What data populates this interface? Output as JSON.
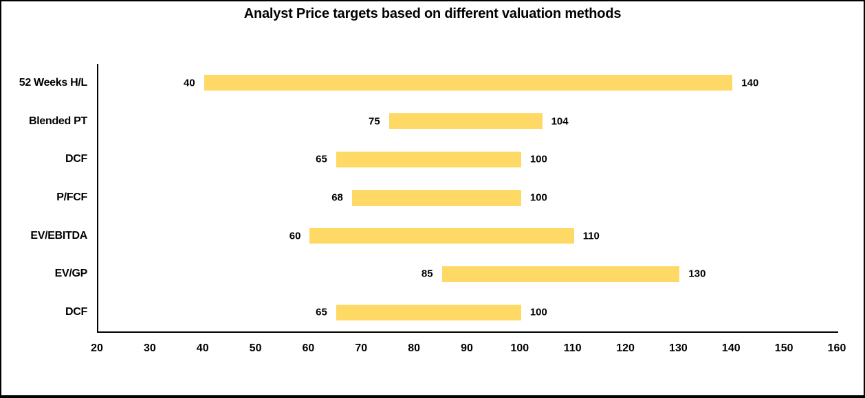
{
  "title": "Analyst Price targets based on different valuation methods",
  "chart_data": {
    "type": "bar",
    "subtype": "horizontal-floating-range",
    "title": "Analyst Price targets based on different valuation methods",
    "categories": [
      "52 Weeks H/L",
      "Blended PT",
      "DCF",
      "P/FCF",
      "EV/EBITDA",
      "EV/GP",
      "DCF"
    ],
    "series": [
      {
        "name": "Low",
        "values": [
          40,
          75,
          65,
          68,
          60,
          85,
          65
        ]
      },
      {
        "name": "High",
        "values": [
          140,
          104,
          100,
          100,
          110,
          130,
          100
        ]
      }
    ],
    "xlabel": "",
    "ylabel": "",
    "xlim": [
      20,
      160
    ],
    "xticks": [
      20,
      30,
      40,
      50,
      60,
      70,
      80,
      90,
      100,
      110,
      120,
      130,
      140,
      150,
      160
    ],
    "bar_color": "#FFD966",
    "axis_color": "#000000",
    "grid": false,
    "legend": false,
    "data_labels": "both-ends"
  }
}
